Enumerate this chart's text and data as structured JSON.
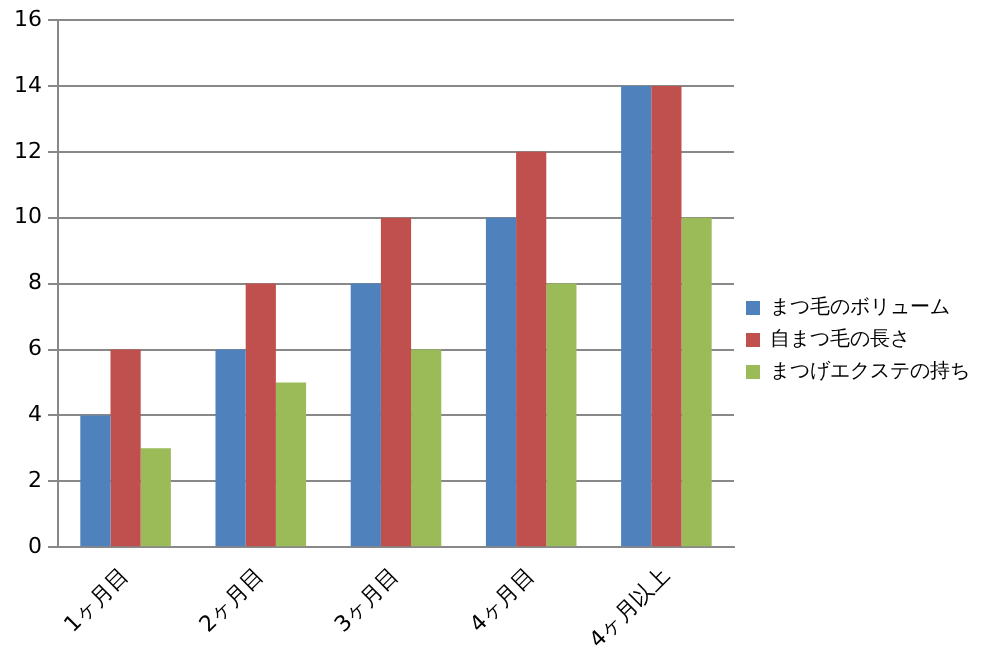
{
  "chart_data": {
    "type": "bar",
    "categories": [
      "1ヶ月目",
      "2ヶ月目",
      "3ヶ月目",
      "4ヶ月目",
      "4ヶ月以上"
    ],
    "series": [
      {
        "name": "まつ毛のボリューム",
        "color": "#4f81bd",
        "values": [
          4,
          6,
          8,
          10,
          14
        ]
      },
      {
        "name": "自まつ毛の長さ",
        "color": "#c0504d",
        "values": [
          6,
          8,
          10,
          12,
          14
        ]
      },
      {
        "name": "まつげエクステの持ち",
        "color": "#9bbb59",
        "values": [
          3,
          5,
          6,
          8,
          10
        ]
      }
    ],
    "ylim": [
      0,
      16
    ],
    "yticks": [
      0,
      2,
      4,
      6,
      8,
      10,
      12,
      14,
      16
    ],
    "grid": "y",
    "legend": "right"
  }
}
